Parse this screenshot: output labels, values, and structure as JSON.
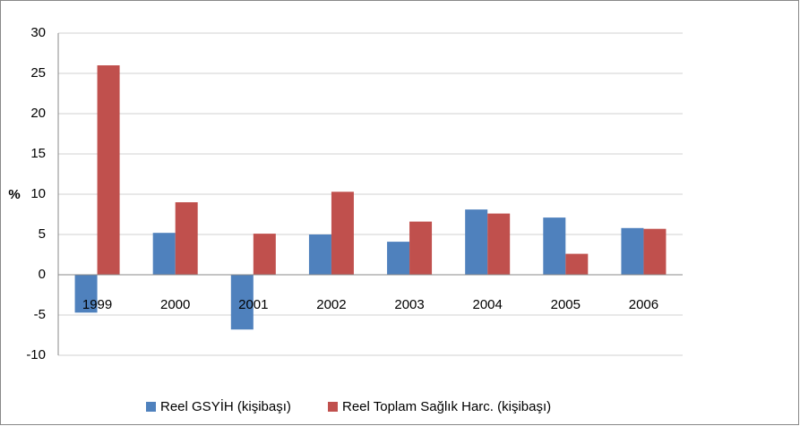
{
  "chart_data": {
    "type": "bar",
    "y_label": "%",
    "categories": [
      "1999",
      "2000",
      "2001",
      "2002",
      "2003",
      "2004",
      "2005",
      "2006"
    ],
    "series": [
      {
        "name": "Reel GSYİH (kişibaşı)",
        "color": "#4f81bd",
        "values": [
          -4.7,
          5.2,
          -6.8,
          5.0,
          4.1,
          8.1,
          7.1,
          5.8
        ]
      },
      {
        "name": "Reel Toplam Sağlık Harc. (kişibaşı)",
        "color": "#c0504d",
        "values": [
          26.0,
          9.0,
          5.1,
          10.3,
          6.6,
          7.6,
          2.6,
          5.7
        ]
      }
    ],
    "ylim": [
      -10,
      30
    ],
    "yticks": [
      -10,
      -5,
      0,
      5,
      10,
      15,
      20,
      25,
      30
    ],
    "grid": true,
    "legend": "bottom"
  }
}
